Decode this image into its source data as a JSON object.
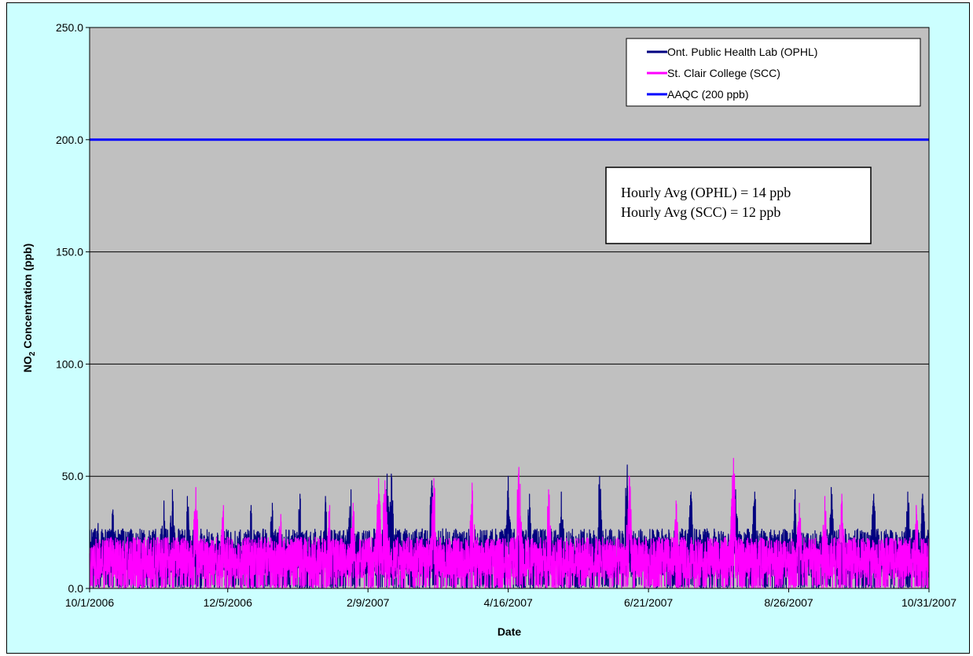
{
  "chart_data": {
    "type": "line",
    "title": "",
    "xlabel": "Date",
    "ylabel": "NO2 Concentration (ppb)",
    "ylabel_main": "NO",
    "ylabel_sub": "2",
    "ylabel_rest": " Concentration (ppb)",
    "ylim": [
      0,
      250
    ],
    "y_ticks": [
      "0.0",
      "50.0",
      "100.0",
      "150.0",
      "200.0",
      "250.0"
    ],
    "y_tick_values": [
      0,
      50,
      100,
      150,
      200,
      250
    ],
    "x_range": [
      "2006-10-01",
      "2007-10-31"
    ],
    "x_ticks": [
      "10/1/2006",
      "12/5/2006",
      "2/9/2007",
      "4/16/2007",
      "6/21/2007",
      "8/26/2007",
      "10/31/2007"
    ],
    "x_tick_dates": [
      "2006-10-01",
      "2006-12-05",
      "2007-02-09",
      "2007-04-16",
      "2007-06-21",
      "2007-08-26",
      "2007-10-31"
    ],
    "grid": "horizontal major gridlines",
    "legend_position": "top-right",
    "plot_background": "#c0c0c0",
    "chart_background": "#ccffff",
    "series": [
      {
        "name": "Ont. Public Health Lab (OPHL)",
        "color": "#000080",
        "resolution": "hourly",
        "average": 14,
        "peaks": [
          {
            "date": "2006-10-05",
            "value": 29
          },
          {
            "date": "2006-10-12",
            "value": 35
          },
          {
            "date": "2006-10-22",
            "value": 22
          },
          {
            "date": "2006-11-05",
            "value": 39
          },
          {
            "date": "2006-11-09",
            "value": 44
          },
          {
            "date": "2006-11-16",
            "value": 41
          },
          {
            "date": "2006-12-16",
            "value": 37
          },
          {
            "date": "2006-12-26",
            "value": 38
          },
          {
            "date": "2007-01-08",
            "value": 42
          },
          {
            "date": "2007-01-20",
            "value": 41
          },
          {
            "date": "2007-02-01",
            "value": 44
          },
          {
            "date": "2007-02-18",
            "value": 51
          },
          {
            "date": "2007-02-20",
            "value": 51
          },
          {
            "date": "2007-03-11",
            "value": 48
          },
          {
            "date": "2007-04-16",
            "value": 50
          },
          {
            "date": "2007-04-26",
            "value": 42
          },
          {
            "date": "2007-05-11",
            "value": 43
          },
          {
            "date": "2007-05-29",
            "value": 50
          },
          {
            "date": "2007-06-11",
            "value": 55
          },
          {
            "date": "2007-07-11",
            "value": 43
          },
          {
            "date": "2007-08-01",
            "value": 44
          },
          {
            "date": "2007-08-10",
            "value": 43
          },
          {
            "date": "2007-08-29",
            "value": 44
          },
          {
            "date": "2007-09-15",
            "value": 45
          },
          {
            "date": "2007-10-05",
            "value": 42
          },
          {
            "date": "2007-10-21",
            "value": 43
          },
          {
            "date": "2007-10-28",
            "value": 42
          }
        ]
      },
      {
        "name": "St. Clair College (SCC)",
        "color": "#ff00ff",
        "resolution": "hourly",
        "average": 12,
        "peaks": [
          {
            "date": "2006-10-04",
            "value": 22
          },
          {
            "date": "2006-11-20",
            "value": 45
          },
          {
            "date": "2006-12-03",
            "value": 37
          },
          {
            "date": "2006-12-30",
            "value": 33
          },
          {
            "date": "2007-01-22",
            "value": 37
          },
          {
            "date": "2007-02-02",
            "value": 38
          },
          {
            "date": "2007-02-14",
            "value": 49
          },
          {
            "date": "2007-02-17",
            "value": 48
          },
          {
            "date": "2007-03-12",
            "value": 49
          },
          {
            "date": "2007-03-30",
            "value": 47
          },
          {
            "date": "2007-04-21",
            "value": 54
          },
          {
            "date": "2007-05-05",
            "value": 44
          },
          {
            "date": "2007-06-12",
            "value": 50
          },
          {
            "date": "2007-07-04",
            "value": 39
          },
          {
            "date": "2007-07-31",
            "value": 58
          },
          {
            "date": "2007-08-31",
            "value": 38
          },
          {
            "date": "2007-09-12",
            "value": 41
          },
          {
            "date": "2007-09-20",
            "value": 42
          },
          {
            "date": "2007-10-25",
            "value": 37
          }
        ]
      },
      {
        "name": "AAQC (200 ppb)",
        "color": "#0000ff",
        "constant": 200
      }
    ],
    "annotation": {
      "line1": "Hourly Avg (OPHL) = 14 ppb",
      "line2": "Hourly Avg (SCC) = 12 ppb"
    }
  }
}
